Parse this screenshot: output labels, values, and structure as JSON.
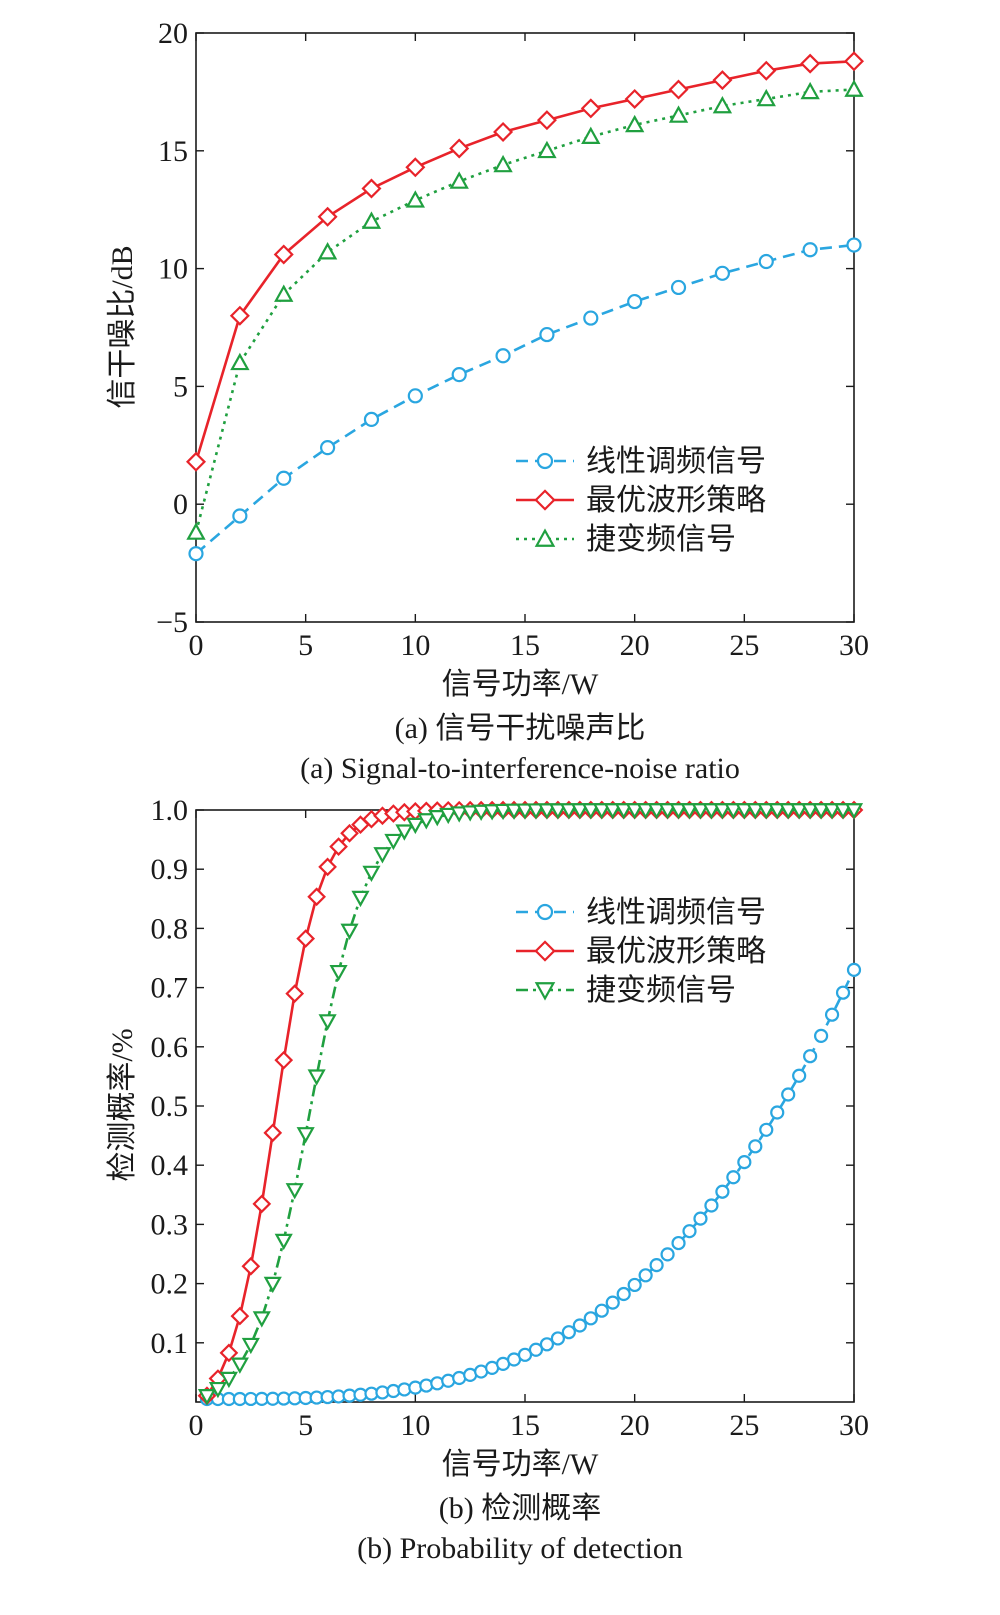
{
  "chart_data": [
    {
      "type": "line",
      "panel": "a",
      "xlabel": "信号功率/W",
      "ylabel": "信干噪比/dB",
      "caption_cn": "(a) 信号干扰噪声比",
      "caption_en": "(a) Signal-to-interference-noise ratio",
      "xlim": [
        0,
        30
      ],
      "ylim": [
        -5,
        20
      ],
      "xticks": [
        0,
        5,
        10,
        15,
        20,
        25,
        30
      ],
      "yticks": [
        -5,
        0,
        5,
        10,
        15,
        20
      ],
      "xtick_labels": [
        "0",
        "5",
        "10",
        "15",
        "20",
        "25",
        "30"
      ],
      "ytick_labels": [
        "−5",
        "0",
        "5",
        "10",
        "15",
        "20"
      ],
      "grid": false,
      "legend_position": "lower-right",
      "series": [
        {
          "name": "线性调频信号",
          "color": "#2aa6e0",
          "dash": "dashed",
          "marker": "circle",
          "x": [
            0,
            2,
            4,
            6,
            8,
            10,
            12,
            14,
            16,
            18,
            20,
            22,
            24,
            26,
            28,
            30
          ],
          "y": [
            -2.1,
            -0.5,
            1.1,
            2.4,
            3.6,
            4.6,
            5.5,
            6.3,
            7.2,
            7.9,
            8.6,
            9.2,
            9.8,
            10.3,
            10.8,
            11.0
          ]
        },
        {
          "name": "最优波形策略",
          "color": "#e8232a",
          "dash": "solid",
          "marker": "diamond",
          "x": [
            0,
            2,
            4,
            6,
            8,
            10,
            12,
            14,
            16,
            18,
            20,
            22,
            24,
            26,
            28,
            30
          ],
          "y": [
            1.8,
            8.0,
            10.6,
            12.2,
            13.4,
            14.3,
            15.1,
            15.8,
            16.3,
            16.8,
            17.2,
            17.6,
            18.0,
            18.4,
            18.7,
            18.8
          ]
        },
        {
          "name": "捷变频信号",
          "color": "#20a040",
          "dash": "dotted",
          "marker": "triangle-up",
          "x": [
            0,
            2,
            4,
            6,
            8,
            10,
            12,
            14,
            16,
            18,
            20,
            22,
            24,
            26,
            28,
            30
          ],
          "y": [
            -1.2,
            6.0,
            8.9,
            10.7,
            12.0,
            12.9,
            13.7,
            14.4,
            15.0,
            15.6,
            16.1,
            16.5,
            16.9,
            17.2,
            17.5,
            17.6
          ]
        }
      ]
    },
    {
      "type": "line",
      "panel": "b",
      "xlabel": "信号功率/W",
      "ylabel": "检测概率/%",
      "caption_cn": "(b) 检测概率",
      "caption_en": "(b) Probability of detection",
      "xlim": [
        0,
        30
      ],
      "ylim": [
        0,
        1.0
      ],
      "xticks": [
        0,
        5,
        10,
        15,
        20,
        25,
        30
      ],
      "yticks": [
        0.1,
        0.2,
        0.3,
        0.4,
        0.5,
        0.6,
        0.7,
        0.8,
        0.9,
        1.0
      ],
      "xtick_labels": [
        "0",
        "5",
        "10",
        "15",
        "20",
        "25",
        "30"
      ],
      "ytick_labels": [
        "0.1",
        "0.2",
        "0.3",
        "0.4",
        "0.5",
        "0.6",
        "0.7",
        "0.8",
        "0.9",
        "1.0"
      ],
      "grid": false,
      "legend_position": "upper-right",
      "series": [
        {
          "name": "线性调频信号",
          "color": "#2aa6e0",
          "dash": "dashed",
          "marker": "circle",
          "curve": {
            "kind": "power",
            "start": 0.005,
            "end": 0.73,
            "exponent": 3.2
          },
          "x_range": [
            0.5,
            30
          ],
          "step": 0.5
        },
        {
          "name": "最优波形策略",
          "color": "#e8232a",
          "dash": "solid",
          "marker": "diamond",
          "curve": {
            "kind": "logistic",
            "center": 3.6,
            "scale": 1.05,
            "cap": 1.0
          },
          "x_range": [
            0.5,
            30
          ],
          "step": 0.5
        },
        {
          "name": "捷变频信号",
          "color": "#20a040",
          "dash": "dashdot",
          "marker": "triangle-down",
          "curve": {
            "kind": "logistic",
            "center": 5.2,
            "scale": 1.3,
            "cap": 1.0
          },
          "x_range": [
            0.5,
            30
          ],
          "step": 0.5
        }
      ]
    }
  ]
}
